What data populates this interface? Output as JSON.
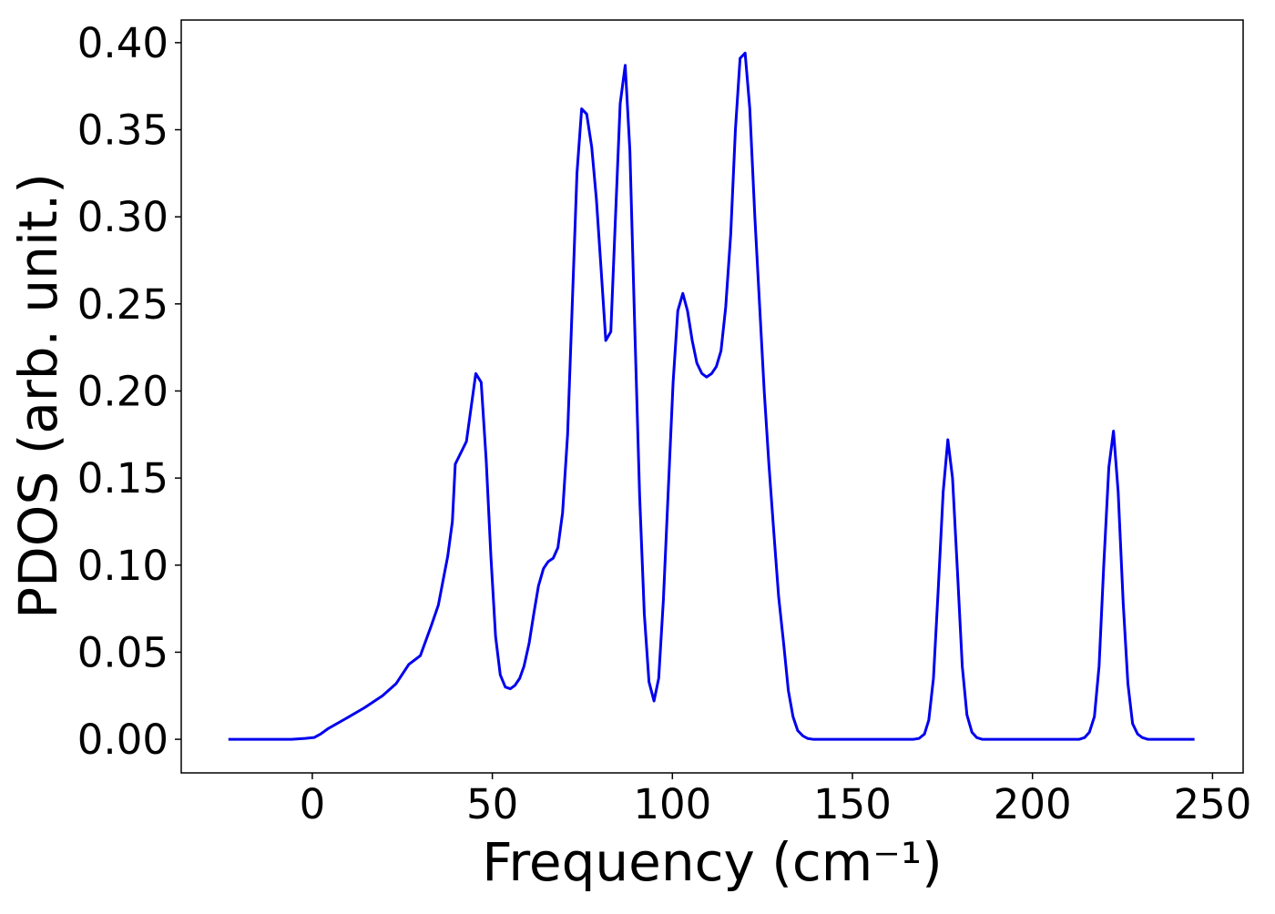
{
  "chart_data": {
    "type": "line",
    "xlabel": "Frequency (cm⁻¹)",
    "ylabel": "PDOS (arb. unit.)",
    "color": "#0000ee",
    "x": [
      -23.3,
      -5.8,
      -2,
      0.5,
      2.3,
      4.3,
      9.4,
      14.4,
      19.5,
      23.3,
      26.8,
      30,
      33,
      35,
      36.2,
      37.6,
      38.9,
      39.7,
      42.8,
      45.4,
      46.9,
      48.3,
      49.6,
      50.9,
      52.2,
      53.6,
      55.0,
      56.3,
      57.6,
      58.8,
      60.2,
      61.5,
      62.8,
      64.2,
      65.5,
      66.9,
      68.2,
      69.5,
      70.9,
      72.2,
      73.5,
      74.8,
      76.2,
      77.6,
      78.9,
      80.2,
      81.5,
      82.9,
      84.2,
      85.5,
      86.9,
      88.2,
      89.5,
      90.9,
      92.2,
      93.5,
      94.9,
      96.2,
      97.5,
      98.9,
      100.2,
      101.5,
      102.9,
      104.2,
      105.5,
      106.8,
      108.2,
      109.5,
      110.9,
      112.2,
      113.5,
      114.8,
      116.2,
      117.5,
      118.8,
      120.2,
      121.5,
      122.9,
      124.2,
      125.5,
      126.8,
      128.2,
      129.5,
      130.9,
      132.2,
      133.5,
      134.8,
      136.2,
      137.5,
      139,
      167,
      168.5,
      170,
      171.2,
      172.5,
      173.8,
      175.2,
      176.5,
      177.8,
      179.2,
      180.5,
      181.8,
      183.2,
      184.5,
      186,
      213,
      214.5,
      215.8,
      217.2,
      218.5,
      219.8,
      221.2,
      222.5,
      223.8,
      225.2,
      226.5,
      227.8,
      229.2,
      230.5,
      232,
      245
    ],
    "values": [
      0,
      0,
      0.0005,
      0.001,
      0.003,
      0.006,
      0.012,
      0.018,
      0.025,
      0.032,
      0.043,
      0.048,
      0.065,
      0.077,
      0.09,
      0.105,
      0.125,
      0.158,
      0.171,
      0.21,
      0.205,
      0.16,
      0.105,
      0.059,
      0.037,
      0.03,
      0.029,
      0.031,
      0.035,
      0.042,
      0.055,
      0.072,
      0.088,
      0.098,
      0.102,
      0.104,
      0.11,
      0.13,
      0.175,
      0.25,
      0.325,
      0.362,
      0.359,
      0.34,
      0.31,
      0.27,
      0.229,
      0.234,
      0.3,
      0.365,
      0.387,
      0.338,
      0.24,
      0.14,
      0.072,
      0.033,
      0.022,
      0.035,
      0.08,
      0.145,
      0.205,
      0.246,
      0.256,
      0.246,
      0.229,
      0.216,
      0.21,
      0.208,
      0.21,
      0.214,
      0.223,
      0.248,
      0.29,
      0.35,
      0.391,
      0.394,
      0.362,
      0.3,
      0.25,
      0.2,
      0.158,
      0.118,
      0.082,
      0.055,
      0.028,
      0.013,
      0.005,
      0.002,
      0.0005,
      0,
      0,
      0.0005,
      0.003,
      0.011,
      0.035,
      0.085,
      0.142,
      0.172,
      0.15,
      0.095,
      0.042,
      0.014,
      0.004,
      0.001,
      0,
      0,
      0.001,
      0.004,
      0.013,
      0.042,
      0.1,
      0.156,
      0.177,
      0.142,
      0.078,
      0.032,
      0.009,
      0.003,
      0.001,
      0,
      0
    ],
    "xlim": [
      -36.4,
      258.5
    ],
    "ylim": [
      -0.0193,
      0.413
    ],
    "xticks": [
      0,
      50,
      100,
      150,
      200,
      250
    ],
    "yticks": [
      {
        "value": 0,
        "label": "0.00"
      },
      {
        "value": 0.05,
        "label": "0.05"
      },
      {
        "value": 0.1,
        "label": "0.10"
      },
      {
        "value": 0.15,
        "label": "0.15"
      },
      {
        "value": 0.2,
        "label": "0.20"
      },
      {
        "value": 0.25,
        "label": "0.25"
      },
      {
        "value": 0.3,
        "label": "0.30"
      },
      {
        "value": 0.35,
        "label": "0.35"
      },
      {
        "value": 0.4,
        "label": "0.40"
      }
    ]
  }
}
